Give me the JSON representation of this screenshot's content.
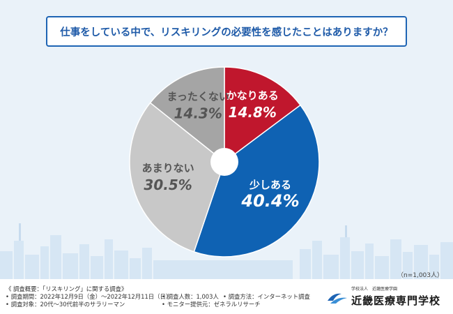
{
  "title": "仕事をしている中で、リスキリングの必要性を感じたことはありますか？",
  "sample_size": "（n=1,003人）",
  "chart_data": {
    "type": "pie",
    "categories": [
      "かなりある",
      "少しある",
      "あまりない",
      "まったくない"
    ],
    "values": [
      14.8,
      40.4,
      30.5,
      14.3
    ],
    "value_labels": [
      "14.8%",
      "40.4%",
      "30.5%",
      "14.3%"
    ],
    "colors": [
      "#c0172d",
      "#0f62b3",
      "#c8c8c8",
      "#a5a5a5"
    ],
    "label_colors": [
      "#ffffff",
      "#ffffff",
      "#555555",
      "#555555"
    ],
    "start": "12 o'clock",
    "direction": "clockwise",
    "donut_hole": true
  },
  "footer": {
    "heading": "《 調査概要：「リスキリング」に関する調査》",
    "period": "• 調査期間：2022年12月9日（金）～2022年12月11日（日）",
    "target": "• 調査対象：20代～30代前半のサラリーマン",
    "count": "• 調査人数：1,003人",
    "method": "• 調査方法：インターネット調査",
    "provider": "• モニター提供元：ゼネラルリサーチ"
  },
  "brand": {
    "small_text": "学校法人　近畿医療学園",
    "name": "近畿医療専門学校"
  }
}
